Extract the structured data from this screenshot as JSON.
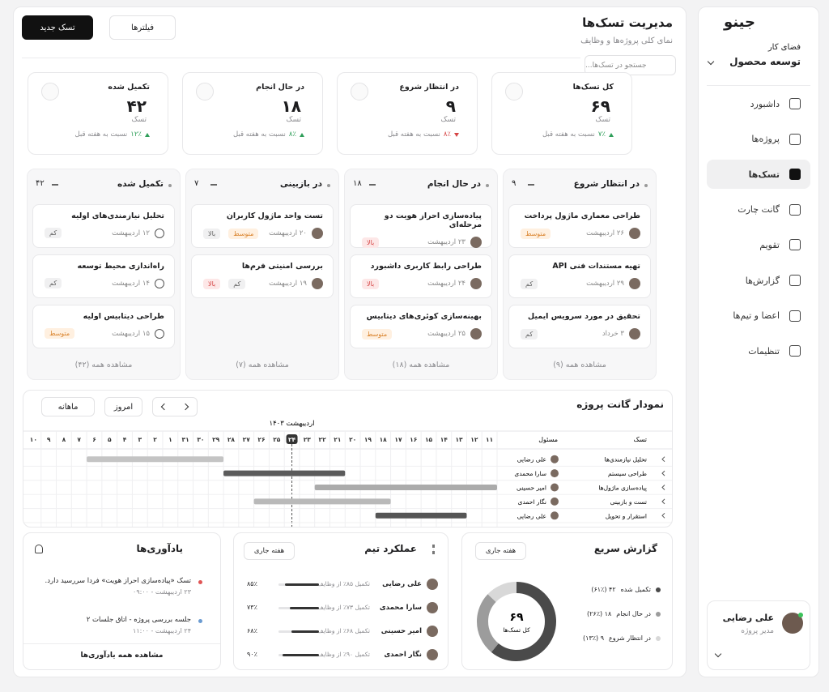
{
  "sidebar": {
    "logo": "جینو",
    "workspace_label": "فضای کار",
    "workspace": "توسعه محصول",
    "nav": [
      "داشبورد",
      "پروژه‌ها",
      "تسک‌ها",
      "گانت چارت",
      "تقویم",
      "گزارش‌ها",
      "اعضا و تیم‌ها",
      "تنظیمات"
    ],
    "active": 2,
    "user": {
      "name": "علی رضایی",
      "role": "مدیر پروژه"
    }
  },
  "header": {
    "title": "مدیریت تسک‌ها",
    "subtitle": "نمای کلی پروژه‌ها و وظایف",
    "new_task": "تسک جدید",
    "filters": "فیلترها",
    "search": "جستجو در تسک‌ها..."
  },
  "stats": [
    {
      "title": "کل تسک‌ها",
      "value": "۶۹",
      "unit": "تسک",
      "change": "۷٪",
      "trend": "up",
      "note": "نسبت به هفته قبل"
    },
    {
      "title": "در انتظار شروع",
      "value": "۹",
      "unit": "تسک",
      "change": "۸٪",
      "trend": "down",
      "note": "نسبت به هفته قبل"
    },
    {
      "title": "در حال انجام",
      "value": "۱۸",
      "unit": "تسک",
      "change": "۸٪",
      "trend": "up",
      "note": "نسبت به هفته قبل"
    },
    {
      "title": "تکمیل شده",
      "value": "۴۲",
      "unit": "تسک",
      "change": "۱۲٪",
      "trend": "up",
      "note": "نسبت به هفته قبل"
    }
  ],
  "board": [
    {
      "title": "در انتظار شروع",
      "count": "۹",
      "more": "مشاهده همه (۹)",
      "done": false,
      "cards": [
        {
          "title": "طراحی معماری ماژول پرداخت",
          "date": "۲۶ اردیبهشت",
          "tags": [
            {
              "text": "متوسط",
              "tone": "orange"
            }
          ]
        },
        {
          "title": "تهیه مستندات فنی API",
          "date": "۲۹ اردیبهشت",
          "tags": [
            {
              "text": "کم",
              "tone": "gray"
            }
          ]
        },
        {
          "title": "تحقیق در مورد سرویس ایمیل",
          "date": "۳ خرداد",
          "tags": [
            {
              "text": "کم",
              "tone": "gray"
            }
          ]
        }
      ]
    },
    {
      "title": "در حال انجام",
      "count": "۱۸",
      "more": "مشاهده همه (۱۸)",
      "done": false,
      "cards": [
        {
          "title": "پیاده‌سازی احراز هویت دو مرحله‌ای",
          "date": "۲۳ اردیبهشت",
          "tags": [
            {
              "text": "بالا",
              "tone": "red"
            }
          ]
        },
        {
          "title": "طراحی رابط کاربری داشبورد",
          "date": "۲۴ اردیبهشت",
          "tags": [
            {
              "text": "بالا",
              "tone": "red"
            }
          ]
        },
        {
          "title": "بهینه‌سازی کوئری‌های دیتابیس",
          "date": "۲۵ اردیبهشت",
          "tags": [
            {
              "text": "متوسط",
              "tone": "orange"
            }
          ]
        }
      ]
    },
    {
      "title": "در بازبینی",
      "count": "۷",
      "more": "مشاهده همه (۷)",
      "done": false,
      "cards": [
        {
          "title": "تست واحد ماژول کاربران",
          "date": "۲۰ اردیبهشت",
          "tags": [
            {
              "text": "متوسط",
              "tone": "orange"
            },
            {
              "text": "بالا",
              "tone": "gray"
            }
          ]
        },
        {
          "title": "بررسی امنیتی فرم‌ها",
          "date": "۱۹ اردیبهشت",
          "tags": [
            {
              "text": "کم",
              "tone": "gray"
            },
            {
              "text": "بالا",
              "tone": "red"
            }
          ]
        }
      ]
    },
    {
      "title": "تکمیل شده",
      "count": "۴۲",
      "more": "مشاهده همه (۴۲)",
      "done": true,
      "cards": [
        {
          "title": "تحلیل نیازمندی‌های اولیه",
          "date": "۱۲ اردیبهشت",
          "tags": [
            {
              "text": "کم",
              "tone": "gray"
            }
          ]
        },
        {
          "title": "راه‌اندازی محیط توسعه",
          "date": "۱۴ اردیبهشت",
          "tags": [
            {
              "text": "کم",
              "tone": "gray"
            }
          ]
        },
        {
          "title": "طراحی دیتابیس اولیه",
          "date": "۱۵ اردیبهشت",
          "tags": [
            {
              "text": "متوسط",
              "tone": "orange"
            }
          ]
        }
      ]
    }
  ],
  "gantt": {
    "title": "نمودار گانت پروژه",
    "today": "امروز",
    "view": "ماهانه",
    "month": "اردیبهشت ۱۴۰۳",
    "task_header": "تسک",
    "owner_header": "مسئول",
    "days": [
      "۱۱",
      "۱۲",
      "۱۳",
      "۱۴",
      "۱۵",
      "۱۶",
      "۱۷",
      "۱۸",
      "۱۹",
      "۲۰",
      "۲۱",
      "۲۲",
      "۲۳",
      "۲۴",
      "۲۵",
      "۲۶",
      "۲۷",
      "۲۸",
      "۲۹",
      "۳۰",
      "۳۱",
      "۱",
      "۲",
      "۳",
      "۴",
      "۵",
      "۶",
      "۷",
      "۸",
      "۹",
      "۱۰"
    ],
    "today_index": 13,
    "rows": [
      {
        "task": "تحلیل نیازمندی‌ها",
        "owner": "علی رضایی",
        "start": 18,
        "end": 26,
        "color": "#c4c4c4"
      },
      {
        "task": "طراحی سیستم",
        "owner": "سارا محمدی",
        "start": 10,
        "end": 17,
        "color": "#5b5b5b"
      },
      {
        "task": "پیاده‌سازی ماژول‌ها",
        "owner": "امیر حسینی",
        "start": 0,
        "end": 11,
        "color": "#ababab"
      },
      {
        "task": "تست و بازبینی",
        "owner": "نگار احمدی",
        "start": 7,
        "end": 15,
        "color": "#b9b9b9"
      },
      {
        "task": "استقرار و تحویل",
        "owner": "علی رضایی",
        "start": 2,
        "end": 7,
        "color": "#555555"
      }
    ]
  },
  "quick_report": {
    "title": "گزارش سریع",
    "period": "هفته جاری",
    "total": "۶۹",
    "total_label": "کل تسک‌ها",
    "series": [
      {
        "name": "تکمیل شده",
        "value": 42,
        "value_label": "۴۲ (۶۱٪)",
        "color": "#4a4a4a"
      },
      {
        "name": "در حال انجام",
        "value": 18,
        "value_label": "۱۸ (۲۶٪)",
        "color": "#9c9c9c"
      },
      {
        "name": "در انتظار شروع",
        "value": 9,
        "value_label": "۹ (۱۳٪)",
        "color": "#d8d8d8"
      }
    ]
  },
  "team": {
    "title": "عملکرد تیم",
    "period": "هفته جاری",
    "members": [
      {
        "name": "علی رضایی",
        "note": "تکمیل ۸۵٪ از وظایف",
        "value": 85,
        "value_label": "۸۵٪"
      },
      {
        "name": "سارا محمدی",
        "note": "تکمیل ۷۳٪ از وظایف",
        "value": 73,
        "value_label": "۷۳٪"
      },
      {
        "name": "امیر حسینی",
        "note": "تکمیل ۶۸٪ از وظایف",
        "value": 68,
        "value_label": "۶۸٪"
      },
      {
        "name": "نگار احمدی",
        "note": "تکمیل ۹۰٪ از وظایف",
        "value": 90,
        "value_label": "۹۰٪"
      }
    ]
  },
  "reminders": {
    "title": "یادآوری‌ها",
    "more": "مشاهده همه یادآوری‌ها",
    "items": [
      {
        "text": "تسک «پیاده‌سازی احراز هویت» فردا سررسید دارد.",
        "time": "۲۳ اردیبهشت - ۰۹:۰۰",
        "color": "#e05555"
      },
      {
        "text": "جلسه بررسی پروژه - اتاق جلسات ۲",
        "time": "۲۴ اردیبهشت - ۱۱:۰۰",
        "color": "#6b9bd1"
      }
    ]
  }
}
